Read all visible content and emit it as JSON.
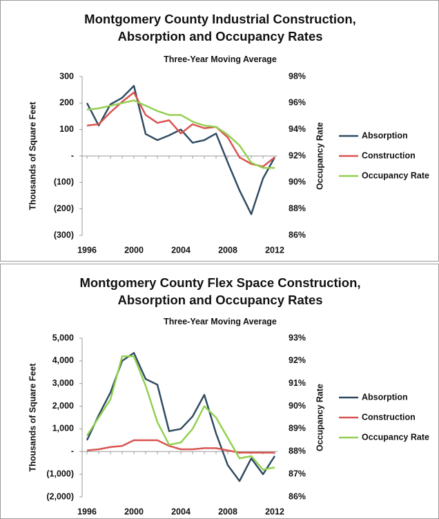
{
  "chart_data": [
    {
      "type": "line",
      "title": "Montgomery County Industrial Construction, Absorption and Occupancy Rates",
      "subtitle": "Three-Year Moving Average",
      "y_label": "Thousands of Square Feet",
      "y2_label": "Occupancy Rate",
      "x": [
        1996,
        1997,
        1998,
        1999,
        2000,
        2001,
        2002,
        2003,
        2004,
        2005,
        2006,
        2007,
        2008,
        2009,
        2010,
        2011,
        2012
      ],
      "xlim": [
        1996,
        2012
      ],
      "xticks": [
        1996,
        2000,
        2004,
        2008,
        2012
      ],
      "ylim": [
        -300,
        300
      ],
      "yticks": [
        {
          "value": -300,
          "label": "(300)"
        },
        {
          "value": -200,
          "label": "(200)"
        },
        {
          "value": -100,
          "label": "(100)"
        },
        {
          "value": 0,
          "label": "-"
        },
        100,
        200,
        300
      ],
      "y2lim": [
        86,
        98
      ],
      "y2ticks": [
        {
          "value": 86,
          "label": "86%"
        },
        {
          "value": 88,
          "label": "88%"
        },
        {
          "value": 90,
          "label": "90%"
        },
        {
          "value": 92,
          "label": "92%"
        },
        {
          "value": 94,
          "label": "94%"
        },
        {
          "value": 96,
          "label": "96%"
        },
        {
          "value": 98,
          "label": "98%"
        }
      ],
      "series": [
        {
          "name": "Absorption",
          "color": "#2f4b62",
          "values": [
            200,
            115,
            195,
            220,
            265,
            83,
            60,
            78,
            100,
            50,
            60,
            85,
            -25,
            -130,
            -220,
            -85,
            -5
          ]
        },
        {
          "name": "Construction",
          "color": "#d9534f",
          "values": [
            115,
            120,
            165,
            205,
            240,
            155,
            125,
            135,
            85,
            120,
            105,
            110,
            70,
            -5,
            -30,
            -40,
            -5
          ]
        },
        {
          "name": "Occupancy Rate",
          "color": "#92d050",
          "axis": "y2",
          "values": [
            95.5,
            95.6,
            95.8,
            96.0,
            96.2,
            95.8,
            95.4,
            95.1,
            95.1,
            94.6,
            94.3,
            94.2,
            93.6,
            92.8,
            91.5,
            91.1,
            91.1
          ]
        }
      ]
    },
    {
      "type": "line",
      "title": "Montgomery County Flex Space Construction, Absorption and Occupancy Rates",
      "subtitle": "Three-Year Moving Average",
      "y_label": "Thousands of Square Feet",
      "y2_label": "Occupancy Rate",
      "x": [
        1996,
        1997,
        1998,
        1999,
        2000,
        2001,
        2002,
        2003,
        2004,
        2005,
        2006,
        2007,
        2008,
        2009,
        2010,
        2011,
        2012
      ],
      "xlim": [
        1996,
        2012
      ],
      "xticks": [
        1996,
        2000,
        2004,
        2008,
        2012
      ],
      "ylim": [
        -2000,
        5000
      ],
      "yticks": [
        {
          "value": -2000,
          "label": "(2,000)"
        },
        {
          "value": -1000,
          "label": "(1,000)"
        },
        {
          "value": 0,
          "label": "-"
        },
        {
          "value": 1000,
          "label": "1,000"
        },
        {
          "value": 2000,
          "label": "2,000"
        },
        {
          "value": 3000,
          "label": "3,000"
        },
        {
          "value": 4000,
          "label": "4,000"
        },
        {
          "value": 5000,
          "label": "5,000"
        }
      ],
      "y2lim": [
        86,
        93
      ],
      "y2ticks": [
        {
          "value": 86,
          "label": "86%"
        },
        {
          "value": 87,
          "label": "87%"
        },
        {
          "value": 88,
          "label": "88%"
        },
        {
          "value": 89,
          "label": "89%"
        },
        {
          "value": 90,
          "label": "90%"
        },
        {
          "value": 91,
          "label": "91%"
        },
        {
          "value": 92,
          "label": "92%"
        },
        {
          "value": 93,
          "label": "93%"
        }
      ],
      "series": [
        {
          "name": "Absorption",
          "color": "#2f4b62",
          "values": [
            500,
            1600,
            2600,
            4000,
            4350,
            3200,
            2950,
            900,
            1000,
            1550,
            2500,
            800,
            -600,
            -1300,
            -300,
            -1000,
            -200
          ]
        },
        {
          "name": "Construction",
          "color": "#d9534f",
          "values": [
            50,
            100,
            200,
            250,
            500,
            500,
            500,
            250,
            100,
            100,
            150,
            150,
            50,
            -50,
            -50,
            -50,
            -50
          ]
        },
        {
          "name": "Occupancy Rate",
          "color": "#92d050",
          "axis": "y2",
          "values": [
            88.7,
            89.5,
            90.3,
            92.2,
            92.2,
            90.9,
            89.3,
            88.3,
            88.4,
            89.0,
            90.0,
            89.5,
            88.6,
            87.7,
            87.8,
            87.2,
            87.3
          ]
        }
      ]
    }
  ]
}
